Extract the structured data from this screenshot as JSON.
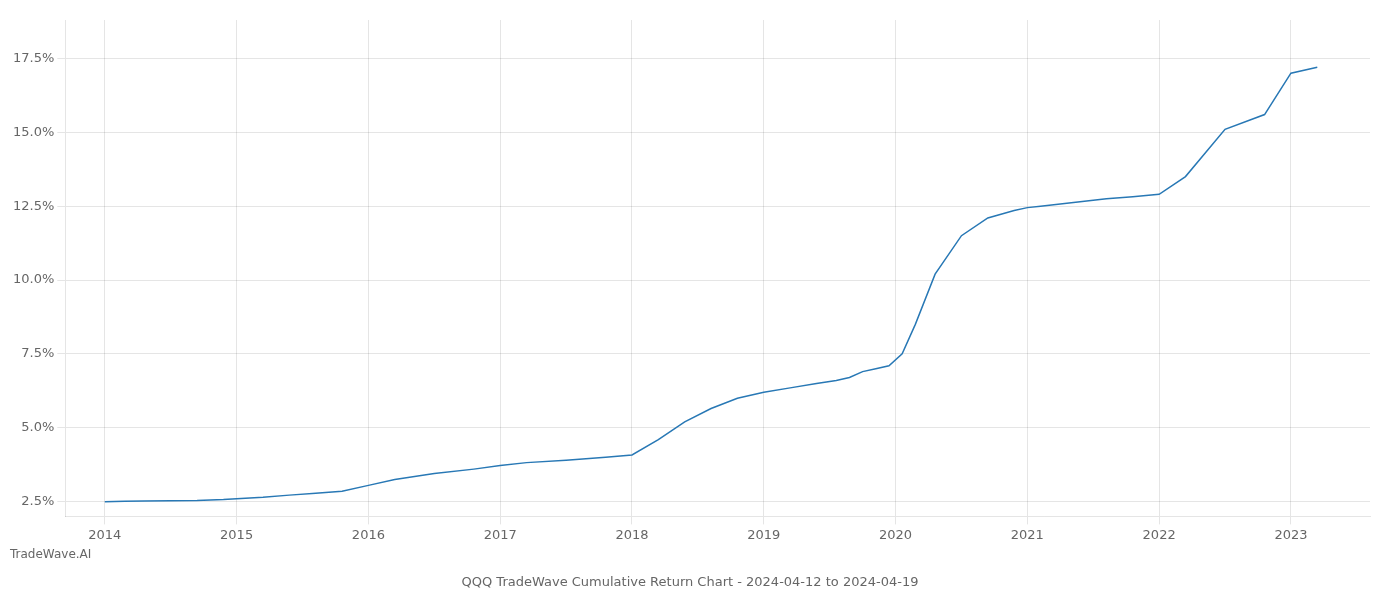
{
  "chart_data": {
    "type": "line",
    "title": "QQQ TradeWave Cumulative Return Chart - 2024-04-12 to 2024-04-19",
    "annotations": [
      "TradeWave.AI"
    ],
    "x": [
      2014.0,
      2014.15,
      2014.3,
      2014.5,
      2014.7,
      2014.9,
      2015.0,
      2015.2,
      2015.4,
      2015.6,
      2015.8,
      2016.0,
      2016.2,
      2016.5,
      2016.8,
      2017.0,
      2017.2,
      2017.5,
      2017.8,
      2018.0,
      2018.2,
      2018.4,
      2018.6,
      2018.8,
      2019.0,
      2019.2,
      2019.4,
      2019.55,
      2019.65,
      2019.75,
      2019.85,
      2019.95,
      2020.05,
      2020.15,
      2020.3,
      2020.5,
      2020.7,
      2020.9,
      2021.0,
      2021.1,
      2021.2,
      2021.4,
      2021.6,
      2021.8,
      2022.0,
      2022.2,
      2022.5,
      2022.8,
      2023.0,
      2023.2
    ],
    "values": [
      2.5,
      2.51,
      2.52,
      2.53,
      2.54,
      2.57,
      2.6,
      2.65,
      2.72,
      2.78,
      2.85,
      3.05,
      3.25,
      3.45,
      3.6,
      3.72,
      3.82,
      3.9,
      4.0,
      4.08,
      4.6,
      5.2,
      5.65,
      6.0,
      6.2,
      6.35,
      6.5,
      6.6,
      6.7,
      6.9,
      7.0,
      7.1,
      7.5,
      8.5,
      10.2,
      11.5,
      12.1,
      12.35,
      12.45,
      12.5,
      12.55,
      12.65,
      12.75,
      12.82,
      12.9,
      13.5,
      15.1,
      15.6,
      17.0,
      17.2
    ],
    "color": "#2878b5",
    "xlim": [
      2013.7,
      2023.6
    ],
    "ylim": [
      2.0,
      18.8
    ],
    "xticks": [
      2014,
      2015,
      2016,
      2017,
      2018,
      2019,
      2020,
      2021,
      2022,
      2023
    ],
    "yticks": [
      {
        "value": 2.5,
        "label": "2.5%"
      },
      {
        "value": 5.0,
        "label": "5.0%"
      },
      {
        "value": 7.5,
        "label": "7.5%"
      },
      {
        "value": 10.0,
        "label": "10.0%"
      },
      {
        "value": 12.5,
        "label": "12.5%"
      },
      {
        "value": 15.0,
        "label": "15.0%"
      },
      {
        "value": 17.5,
        "label": "17.5%"
      }
    ],
    "grid": true
  }
}
